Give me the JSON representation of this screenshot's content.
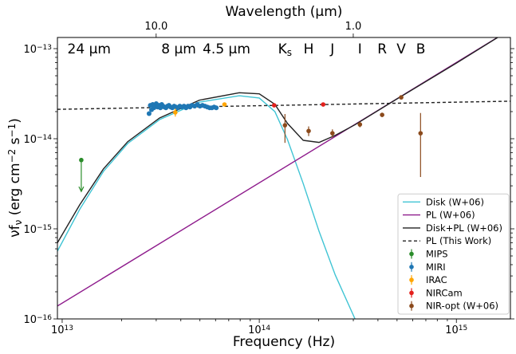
{
  "chart_data": {
    "type": "scatter",
    "log_x": true,
    "log_y": true,
    "xlabel": "Frequency (Hz)",
    "x2label": "Wavelength (μm)",
    "ylabel": [
      {
        "text": "νf"
      },
      {
        "text": "ν",
        "sub": true
      },
      {
        "text": " (erg cm"
      },
      {
        "text": "−2",
        "sup": true
      },
      {
        "text": " s"
      },
      {
        "text": "−1",
        "sup": true
      },
      {
        "text": ")"
      }
    ],
    "xlim": [
      9460000000000.0,
      1880000000000000.0
    ],
    "ylim": [
      1e-16,
      1.33e-13
    ],
    "xticks": [
      {
        "value": 10000000000000.0,
        "label": "10",
        "exponent": "13"
      },
      {
        "value": 100000000000000.0,
        "label": "10",
        "exponent": "14"
      },
      {
        "value": 1000000000000000.0,
        "label": "10",
        "exponent": "15"
      }
    ],
    "yticks": [
      {
        "value": 1e-16,
        "label": "10",
        "exponent": "−16"
      },
      {
        "value": 1e-15,
        "label": "10",
        "exponent": "−15"
      },
      {
        "value": 1e-14,
        "label": "10",
        "exponent": "−14"
      },
      {
        "value": 1e-13,
        "label": "10",
        "exponent": "−13"
      }
    ],
    "x2ticks": [
      {
        "value": 10,
        "label": "10.0"
      },
      {
        "value": 1,
        "label": "1.0"
      }
    ],
    "annotations": [
      {
        "text": "24 μm",
        "x": 13700000000000.0
      },
      {
        "text": "8 μm",
        "x": 39000000000000.0
      },
      {
        "text": "4.5 μm",
        "x": 68200000000000.0
      },
      {
        "text": "K",
        "sub": "s",
        "x": 135000000000000.0
      },
      {
        "text": "H",
        "x": 178000000000000.0
      },
      {
        "text": "J",
        "x": 235000000000000.0
      },
      {
        "text": "I",
        "x": 324000000000000.0
      },
      {
        "text": "R",
        "x": 420000000000000.0
      },
      {
        "text": "V",
        "x": 525000000000000.0
      },
      {
        "text": "B",
        "x": 660000000000000.0
      }
    ],
    "legend": "lower right",
    "lines": [
      {
        "name": "Disk (W+06)",
        "color": "#40c4d4",
        "dash": false,
        "x": [
          9460000000000.0,
          12300000000000.0,
          16200000000000.0,
          21500000000000.0,
          31200000000000.0,
          49700000000000.0,
          79200000000000.0,
          100000000000000.0,
          120000000000000.0,
          139000000000000.0,
          167000000000000.0,
          201000000000000.0,
          243000000000000.0,
          306000000000000.0
        ],
        "values": [
          5.65e-16,
          1.66e-15,
          4.34e-15,
          8.85e-15,
          1.63e-14,
          2.55e-14,
          3e-14,
          2.83e-14,
          2e-14,
          9.8e-15,
          3.19e-15,
          9.4e-16,
          3.07e-16,
          1e-16
        ]
      },
      {
        "name": "PL (W+06)",
        "color": "#8e1b8c",
        "dash": false,
        "x": [
          9460000000000.0,
          1880000000000000.0
        ],
        "values": [
          1.39e-16,
          1.63e-13
        ]
      },
      {
        "name": "Disk+PL (W+06)",
        "color": "#222222",
        "dash": false,
        "x": [
          9460000000000.0,
          12300000000000.0,
          16200000000000.0,
          21500000000000.0,
          31200000000000.0,
          49700000000000.0,
          79200000000000.0,
          100000000000000.0,
          120000000000000.0,
          139000000000000.0,
          167000000000000.0,
          201000000000000.0,
          243000000000000.0,
          306000000000000.0,
          500000000000000.0,
          1000000000000000.0,
          1880000000000000.0
        ],
        "values": [
          7e-16,
          1.86e-15,
          4.63e-15,
          9.27e-15,
          1.7e-14,
          2.68e-14,
          3.24e-14,
          3.15e-14,
          2.41e-14,
          1.48e-14,
          9.6e-15,
          9.1e-15,
          1.09e-14,
          1.43e-14,
          2.77e-14,
          6.9e-14,
          1.63e-13
        ]
      },
      {
        "name": "PL (This Work)",
        "color": "#222222",
        "dash": true,
        "x": [
          9460000000000.0,
          1880000000000000.0
        ],
        "values": [
          2.12e-14,
          2.61e-14
        ]
      }
    ],
    "series": [
      {
        "name": "MIPS",
        "color": "#2a8c2a",
        "upper_limit": true,
        "x": [
          12500000000000.0
        ],
        "values": [
          5.8e-15
        ],
        "yerr_low": [
          3.2e-15
        ],
        "yerr_high": [
          0
        ]
      },
      {
        "name": "MIRI",
        "color": "#1f77b4",
        "x": [
          27600000000000.0,
          28000000000000.0,
          28400000000000.0,
          28800000000000.0,
          29200000000000.0,
          29600000000000.0,
          30000000000000.0,
          30500000000000.0,
          31000000000000.0,
          31500000000000.0,
          32000000000000.0,
          32500000000000.0,
          33000000000000.0,
          33600000000000.0,
          34200000000000.0,
          34800000000000.0,
          35500000000000.0,
          36200000000000.0,
          37000000000000.0,
          37800000000000.0,
          38600000000000.0,
          39500000000000.0,
          40500000000000.0,
          41500000000000.0,
          42500000000000.0,
          43500000000000.0,
          44500000000000.0,
          45500000000000.0,
          47000000000000.0,
          48500000000000.0,
          50000000000000.0,
          51500000000000.0,
          53000000000000.0,
          54500000000000.0,
          56000000000000.0,
          57500000000000.0,
          59000000000000.0,
          60500000000000.0
        ],
        "values": [
          1.9e-14,
          2.35e-14,
          2.1e-14,
          2.4e-14,
          2.2e-14,
          2.3e-14,
          2.45e-14,
          2.25e-14,
          2.35e-14,
          2.2e-14,
          2.4e-14,
          2.3e-14,
          2.25e-14,
          2.2e-14,
          2.3e-14,
          2.35e-14,
          2.25e-14,
          2.2e-14,
          2.3e-14,
          2.25e-14,
          2.2e-14,
          2.3e-14,
          2.25e-14,
          2.3e-14,
          2.2e-14,
          2.3e-14,
          2.25e-14,
          2.35e-14,
          2.3e-14,
          2.4e-14,
          2.3e-14,
          2.35e-14,
          2.3e-14,
          2.25e-14,
          2.2e-14,
          2.2e-14,
          2.25e-14,
          2.2e-14
        ]
      },
      {
        "name": "IRAC",
        "color": "#ffa500",
        "x": [
          37500000000000.0,
          66600000000000.0
        ],
        "values": [
          1.96e-14,
          2.4e-14
        ],
        "yerr_low": [
          2e-15,
          1e-15
        ],
        "yerr_high": [
          2e-15,
          1e-15
        ]
      },
      {
        "name": "NIRCam",
        "color": "#e3201c",
        "x": [
          119000000000000.0,
          211000000000000.0
        ],
        "values": [
          2.35e-14,
          2.4e-14
        ],
        "yerr_low": [
          1e-15,
          1e-15
        ],
        "yerr_high": [
          1e-15,
          1e-15
        ]
      },
      {
        "name": "NIR-opt (W+06)",
        "color": "#8b4a1c",
        "x": [
          135000000000000.0,
          178000000000000.0,
          235000000000000.0,
          324000000000000.0,
          420000000000000.0,
          525000000000000.0,
          658000000000000.0
        ],
        "values": [
          1.41e-14,
          1.22e-14,
          1.15e-14,
          1.44e-14,
          1.84e-14,
          2.88e-14,
          1.15e-14
        ],
        "yerr_low": [
          5.1e-15,
          1.5e-15,
          1.2e-15,
          1e-15,
          1e-15,
          1.5e-15,
          7.74e-15
        ],
        "yerr_high": [
          4.7e-15,
          1.5e-15,
          1.2e-15,
          1e-15,
          1e-15,
          1.5e-15,
          7.8e-15
        ]
      }
    ]
  }
}
